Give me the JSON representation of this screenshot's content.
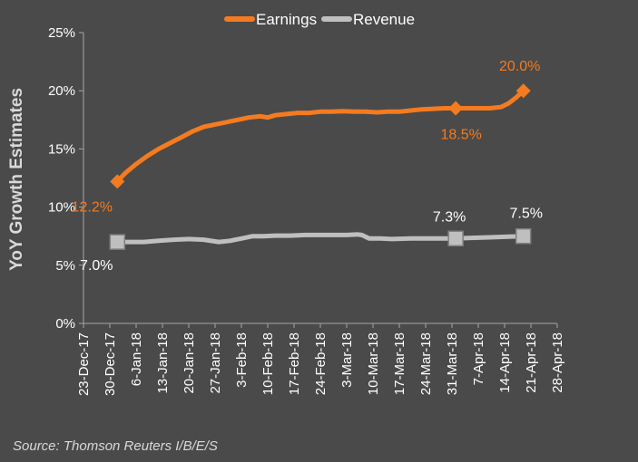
{
  "chart_data": {
    "type": "line",
    "ylabel": "YoY Growth Estimates",
    "ylim": [
      0,
      25
    ],
    "yticks": [
      0,
      5,
      10,
      15,
      20,
      25
    ],
    "ytick_labels": [
      "0%",
      "5%",
      "10%",
      "15%",
      "20%",
      "25%"
    ],
    "xlim": [
      "2017-12-23",
      "2018-04-28"
    ],
    "xtick_labels": [
      "23-Dec-17",
      "30-Dec-17",
      "6-Jan-18",
      "13-Jan-18",
      "20-Jan-18",
      "27-Jan-18",
      "3-Feb-18",
      "10-Feb-18",
      "17-Feb-18",
      "24-Feb-18",
      "3-Mar-18",
      "10-Mar-18",
      "17-Mar-18",
      "24-Mar-18",
      "31-Mar-18",
      "7-Apr-18",
      "14-Apr-18",
      "21-Apr-18",
      "28-Apr-18"
    ],
    "legend_position": "top-center",
    "grid": false,
    "series": [
      {
        "name": "Earnings",
        "color": "#f47b20",
        "x": [
          "2018-01-01",
          "2018-01-03",
          "2018-01-06",
          "2018-01-09",
          "2018-01-12",
          "2018-01-15",
          "2018-01-18",
          "2018-01-21",
          "2018-01-24",
          "2018-01-27",
          "2018-01-30",
          "2018-02-02",
          "2018-02-05",
          "2018-02-08",
          "2018-02-10",
          "2018-02-12",
          "2018-02-15",
          "2018-02-18",
          "2018-02-21",
          "2018-02-24",
          "2018-02-27",
          "2018-03-02",
          "2018-03-05",
          "2018-03-08",
          "2018-03-11",
          "2018-03-14",
          "2018-03-17",
          "2018-03-20",
          "2018-03-23",
          "2018-03-26",
          "2018-03-29",
          "2018-04-01",
          "2018-04-04",
          "2018-04-07",
          "2018-04-10",
          "2018-04-13",
          "2018-04-15",
          "2018-04-17",
          "2018-04-19"
        ],
        "values": [
          12.2,
          12.9,
          13.7,
          14.4,
          15.0,
          15.5,
          16.0,
          16.5,
          16.9,
          17.1,
          17.3,
          17.5,
          17.7,
          17.8,
          17.7,
          17.9,
          18.0,
          18.1,
          18.1,
          18.2,
          18.2,
          18.25,
          18.2,
          18.2,
          18.15,
          18.2,
          18.2,
          18.3,
          18.4,
          18.45,
          18.5,
          18.5,
          18.5,
          18.5,
          18.5,
          18.6,
          18.9,
          19.4,
          20.0
        ],
        "markers": [
          {
            "x": "2018-01-01",
            "value": 12.2,
            "label": "12.2%"
          },
          {
            "x": "2018-04-01",
            "value": 18.5,
            "label": "18.5%"
          },
          {
            "x": "2018-04-19",
            "value": 20.0,
            "label": "20.0%"
          }
        ]
      },
      {
        "name": "Revenue",
        "color": "#bfbfbf",
        "x": [
          "2018-01-01",
          "2018-01-04",
          "2018-01-08",
          "2018-01-12",
          "2018-01-16",
          "2018-01-20",
          "2018-01-24",
          "2018-01-28",
          "2018-01-31",
          "2018-02-03",
          "2018-02-06",
          "2018-02-09",
          "2018-02-12",
          "2018-02-16",
          "2018-02-20",
          "2018-02-24",
          "2018-02-28",
          "2018-03-03",
          "2018-03-06",
          "2018-03-07",
          "2018-03-09",
          "2018-03-12",
          "2018-03-15",
          "2018-03-20",
          "2018-03-25",
          "2018-03-30",
          "2018-04-01",
          "2018-04-05",
          "2018-04-10",
          "2018-04-15",
          "2018-04-19"
        ],
        "values": [
          7.0,
          7.0,
          7.0,
          7.1,
          7.2,
          7.25,
          7.2,
          7.0,
          7.1,
          7.3,
          7.5,
          7.5,
          7.55,
          7.55,
          7.6,
          7.6,
          7.6,
          7.6,
          7.65,
          7.6,
          7.3,
          7.3,
          7.25,
          7.3,
          7.3,
          7.3,
          7.3,
          7.35,
          7.4,
          7.45,
          7.5
        ],
        "markers": [
          {
            "x": "2018-01-01",
            "value": 7.0,
            "label": "7.0%"
          },
          {
            "x": "2018-04-01",
            "value": 7.3,
            "label": "7.3%"
          },
          {
            "x": "2018-04-19",
            "value": 7.5,
            "label": "7.5%"
          }
        ]
      }
    ]
  },
  "source": "Source: Thomson Reuters I/B/E/S"
}
